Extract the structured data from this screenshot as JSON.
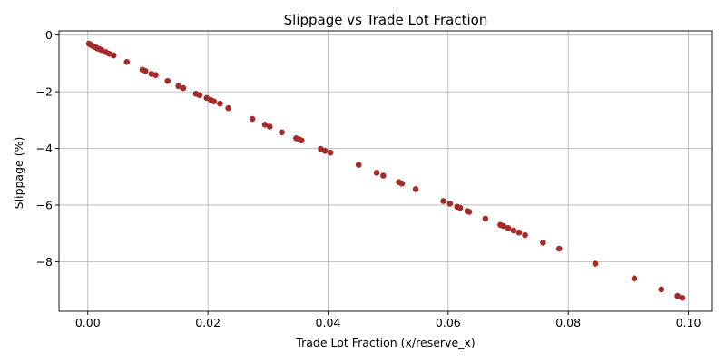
{
  "chart_data": {
    "type": "scatter",
    "title": "Slippage vs Trade Lot Fraction",
    "xlabel": "Trade Lot Fraction (x/reserve_x)",
    "ylabel": "Slippage (%)",
    "xlim": [
      -0.0048,
      0.104
    ],
    "ylim": [
      -9.75,
      0.15
    ],
    "xticks": [
      0.0,
      0.02,
      0.04,
      0.06,
      0.08,
      0.1
    ],
    "xtick_labels": [
      "0.00",
      "0.02",
      "0.04",
      "0.06",
      "0.08",
      "0.10"
    ],
    "yticks": [
      0,
      -2,
      -4,
      -6,
      -8
    ],
    "ytick_labels": [
      "0",
      "−2",
      "−4",
      "−6",
      "−8"
    ],
    "grid": true,
    "marker_color": "#a52a2a",
    "x": [
      0.0002,
      0.0005,
      0.0008,
      0.0011,
      0.0014,
      0.0016,
      0.002,
      0.0023,
      0.003,
      0.0036,
      0.0043,
      0.0065,
      0.0091,
      0.0096,
      0.0106,
      0.0113,
      0.0133,
      0.0151,
      0.0159,
      0.018,
      0.0186,
      0.0198,
      0.0205,
      0.021,
      0.022,
      0.0234,
      0.0274,
      0.0295,
      0.0303,
      0.0323,
      0.0347,
      0.0352,
      0.0356,
      0.0388,
      0.0395,
      0.0404,
      0.0451,
      0.0481,
      0.0492,
      0.0518,
      0.0523,
      0.0546,
      0.0592,
      0.0603,
      0.0615,
      0.062,
      0.0632,
      0.0635,
      0.0662,
      0.0687,
      0.0692,
      0.07,
      0.0709,
      0.0718,
      0.0728,
      0.0758,
      0.0785,
      0.0845,
      0.091,
      0.0955,
      0.0982,
      0.099
    ],
    "y": [
      -0.3,
      -0.34,
      -0.38,
      -0.41,
      -0.44,
      -0.47,
      -0.5,
      -0.53,
      -0.6,
      -0.66,
      -0.72,
      -0.95,
      -1.22,
      -1.27,
      -1.37,
      -1.41,
      -1.62,
      -1.8,
      -1.87,
      -2.07,
      -2.12,
      -2.22,
      -2.29,
      -2.34,
      -2.42,
      -2.58,
      -2.96,
      -3.16,
      -3.23,
      -3.43,
      -3.64,
      -3.68,
      -3.72,
      -4.02,
      -4.09,
      -4.15,
      -4.58,
      -4.86,
      -4.96,
      -5.19,
      -5.24,
      -5.44,
      -5.86,
      -5.95,
      -6.06,
      -6.1,
      -6.21,
      -6.24,
      -6.48,
      -6.7,
      -6.74,
      -6.81,
      -6.9,
      -6.97,
      -7.06,
      -7.33,
      -7.54,
      -8.07,
      -8.59,
      -8.98,
      -9.21,
      -9.28
    ]
  }
}
